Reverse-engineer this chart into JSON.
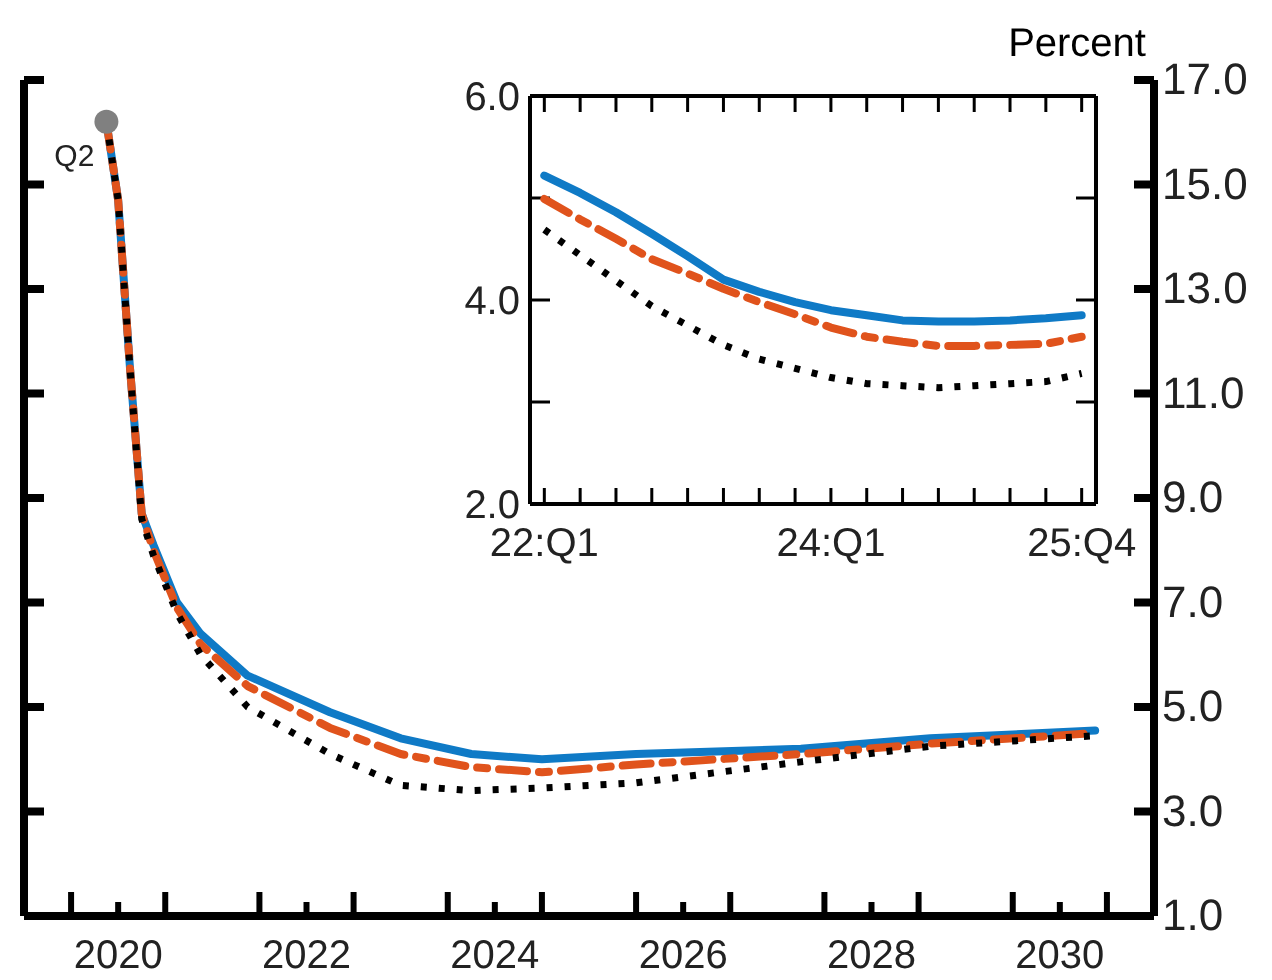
{
  "chart_data": [
    {
      "type": "line",
      "ylabel": "Percent",
      "xlim": [
        2019.5,
        2031.5
      ],
      "xticks": [
        {
          "value": 2020,
          "label": null
        },
        {
          "value": 2020.5,
          "label": "2020"
        },
        {
          "value": 2021,
          "label": null
        },
        {
          "value": 2022,
          "label": null
        },
        {
          "value": 2022.5,
          "label": "2022"
        },
        {
          "value": 2023,
          "label": null
        },
        {
          "value": 2024,
          "label": null
        },
        {
          "value": 2024.5,
          "label": "2024"
        },
        {
          "value": 2025,
          "label": null
        },
        {
          "value": 2026,
          "label": null
        },
        {
          "value": 2026.5,
          "label": "2026"
        },
        {
          "value": 2027,
          "label": null
        },
        {
          "value": 2028,
          "label": null
        },
        {
          "value": 2028.5,
          "label": "2028"
        },
        {
          "value": 2029,
          "label": null
        },
        {
          "value": 2030,
          "label": null
        },
        {
          "value": 2030.5,
          "label": "2030"
        },
        {
          "value": 2031,
          "label": null
        }
      ],
      "ylim": [
        1,
        17
      ],
      "yticks": [
        {
          "value": 1,
          "label": "1.0"
        },
        {
          "value": 3,
          "label": "3.0"
        },
        {
          "value": 5,
          "label": "5.0"
        },
        {
          "value": 7,
          "label": "7.0"
        },
        {
          "value": 9,
          "label": "9.0"
        },
        {
          "value": 11,
          "label": "11.0"
        },
        {
          "value": 13,
          "label": "13.0"
        },
        {
          "value": 15,
          "label": "15.0"
        },
        {
          "value": 17,
          "label": "17.0"
        }
      ],
      "x": [
        2020.375,
        2020.5,
        2020.625,
        2020.75,
        2020.875,
        2021.125,
        2021.375,
        2021.875,
        2022.75,
        2023.5,
        2024.25,
        2025.0,
        2026.0,
        2027.75,
        2029.125,
        2030.875
      ],
      "series": [
        {
          "color": "#0f7ac6",
          "line_style": "solid",
          "values": [
            16.2,
            14.7,
            11.5,
            8.7,
            8.1,
            7.0,
            6.4,
            5.6,
            4.9,
            4.4,
            4.1,
            4.0,
            4.1,
            4.2,
            4.4,
            4.55
          ]
        },
        {
          "color": "#e0531c",
          "line_style": "dashed",
          "values": [
            16.2,
            14.7,
            11.5,
            8.7,
            8.0,
            6.9,
            6.2,
            5.4,
            4.6,
            4.1,
            3.85,
            3.75,
            3.9,
            4.1,
            4.3,
            4.5
          ]
        },
        {
          "color": "#000000",
          "line_style": "dotted",
          "values": [
            16.2,
            14.7,
            11.5,
            8.6,
            7.9,
            6.8,
            6.0,
            5.0,
            4.1,
            3.5,
            3.4,
            3.45,
            3.55,
            3.95,
            4.25,
            4.45
          ]
        },
        {
          "type": "scatter",
          "color": "#808080",
          "x": [
            2020.375
          ],
          "values": [
            16.2
          ]
        }
      ],
      "annotations": [
        {
          "text": "Q2",
          "x": 2020.375,
          "y": 16.2
        }
      ]
    },
    {
      "type": "line",
      "categories": [
        "22:Q1",
        null,
        null,
        null,
        null,
        null,
        null,
        null,
        "24:Q1",
        null,
        null,
        null,
        null,
        null,
        null,
        "25:Q4"
      ],
      "ylim": [
        2,
        6
      ],
      "yticks": [
        {
          "value": 2,
          "label": "2.0"
        },
        {
          "value": 3,
          "label": null
        },
        {
          "value": 4,
          "label": "4.0"
        },
        {
          "value": 5,
          "label": null
        },
        {
          "value": 6,
          "label": "6.0"
        }
      ],
      "series": [
        {
          "color": "#0f7ac6",
          "line_style": "solid",
          "values": [
            5.22,
            5.05,
            4.86,
            4.65,
            4.43,
            4.2,
            4.08,
            3.98,
            3.9,
            3.85,
            3.8,
            3.79,
            3.79,
            3.8,
            3.82,
            3.85
          ]
        },
        {
          "color": "#e0531c",
          "line_style": "dashed",
          "values": [
            4.99,
            4.79,
            4.6,
            4.4,
            4.26,
            4.11,
            3.98,
            3.86,
            3.73,
            3.64,
            3.59,
            3.55,
            3.55,
            3.56,
            3.57,
            3.64
          ]
        },
        {
          "color": "#000000",
          "line_style": "dotted",
          "values": [
            4.69,
            4.44,
            4.19,
            3.94,
            3.75,
            3.56,
            3.42,
            3.33,
            3.24,
            3.18,
            3.16,
            3.14,
            3.16,
            3.18,
            3.2,
            3.28
          ]
        }
      ]
    }
  ]
}
